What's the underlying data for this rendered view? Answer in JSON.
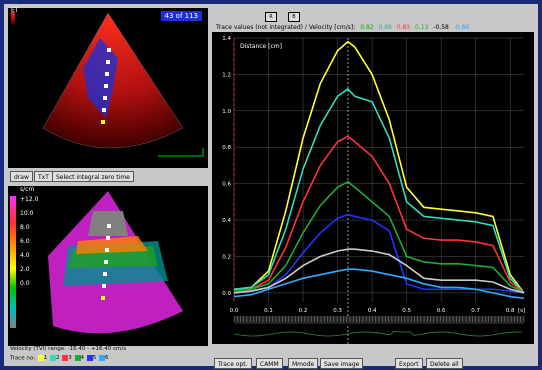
{
  "top_view": {
    "label": "ET",
    "counter": "43 of 113",
    "buttons": [
      "draw",
      "TxT",
      "Select integral zero time"
    ]
  },
  "bottom_view": {
    "label": "s/cm",
    "scale": [
      "+12.0",
      "10.0",
      "8.0",
      "6.0",
      "4.0",
      "2.0",
      "0.0"
    ]
  },
  "velocity_info": "Velocity (TVI) range: -16.40 - +16.40 cm/s",
  "trace_label": "Trace no:",
  "trace_numbers": [
    "1",
    "2",
    "3",
    "4",
    "5",
    "6"
  ],
  "graph": {
    "header_title": "Trace values (not integrated) / Velocity [cm/s]:",
    "header_values": [
      {
        "text": "0.82",
        "color": "#00aa00"
      },
      {
        "text": "0.89",
        "color": "#33cc99"
      },
      {
        "text": "0.83",
        "color": "#ff3333"
      },
      {
        "text": "0.13",
        "color": "#22aa22"
      },
      {
        "text": "-0.58",
        "color": "#000000"
      },
      {
        "text": "-0.66",
        "color": "#3399ff"
      }
    ],
    "top_btns": [
      "R",
      "B"
    ],
    "y_title": "Distance [cm]",
    "x_unit": "[s]",
    "y_ticks": [
      "1.4",
      "1.2",
      "1.0",
      "0.8",
      "0.6",
      "0.4",
      "0.2",
      "0.0"
    ],
    "x_ticks": [
      "0.0",
      "0.1",
      "0.2",
      "0.3",
      "0.4",
      "0.5",
      "0.6",
      "0.7",
      "0.8"
    ],
    "buttons": [
      "Trace opt.",
      "CAMM",
      "Mmode",
      "Save image",
      "Export",
      "Delete all"
    ]
  },
  "chart_data": {
    "type": "line",
    "x": [
      0.0,
      0.05,
      0.1,
      0.15,
      0.2,
      0.25,
      0.3,
      0.33,
      0.35,
      0.4,
      0.45,
      0.5,
      0.55,
      0.6,
      0.65,
      0.7,
      0.75,
      0.8,
      0.84
    ],
    "xlim": [
      0,
      0.84
    ],
    "ylim": [
      -0.05,
      1.4
    ],
    "series": [
      {
        "color": "#ffff33",
        "values": [
          0.02,
          0.03,
          0.12,
          0.45,
          0.85,
          1.15,
          1.33,
          1.38,
          1.35,
          1.2,
          0.95,
          0.58,
          0.47,
          0.46,
          0.45,
          0.44,
          0.42,
          0.1,
          0.0
        ]
      },
      {
        "color": "#33ddbb",
        "values": [
          0.02,
          0.03,
          0.1,
          0.35,
          0.68,
          0.92,
          1.08,
          1.12,
          1.08,
          1.05,
          0.85,
          0.5,
          0.42,
          0.41,
          0.4,
          0.39,
          0.37,
          0.08,
          0.0
        ]
      },
      {
        "color": "#ff3333",
        "values": [
          0.01,
          0.02,
          0.07,
          0.25,
          0.5,
          0.7,
          0.83,
          0.86,
          0.83,
          0.75,
          0.6,
          0.35,
          0.3,
          0.29,
          0.29,
          0.28,
          0.26,
          0.06,
          0.0
        ]
      },
      {
        "color": "#22aa33",
        "values": [
          0.01,
          0.02,
          0.05,
          0.15,
          0.33,
          0.48,
          0.58,
          0.61,
          0.58,
          0.5,
          0.42,
          0.2,
          0.17,
          0.16,
          0.16,
          0.15,
          0.14,
          0.04,
          0.0
        ]
      },
      {
        "color": "#2233ff",
        "values": [
          0.0,
          0.01,
          0.03,
          0.1,
          0.22,
          0.33,
          0.41,
          0.43,
          0.42,
          0.4,
          0.34,
          0.05,
          0.02,
          0.02,
          0.02,
          0.02,
          0.02,
          0.01,
          0.0
        ]
      },
      {
        "color": "#cccccc",
        "values": [
          0.0,
          0.01,
          0.03,
          0.08,
          0.15,
          0.2,
          0.23,
          0.24,
          0.24,
          0.23,
          0.21,
          0.15,
          0.08,
          0.07,
          0.07,
          0.07,
          0.06,
          0.02,
          0.0
        ]
      },
      {
        "color": "#33aaff",
        "values": [
          -0.02,
          -0.01,
          0.02,
          0.05,
          0.08,
          0.1,
          0.12,
          0.13,
          0.13,
          0.12,
          0.1,
          0.08,
          0.05,
          0.03,
          0.03,
          0.02,
          0.0,
          -0.02,
          -0.03
        ]
      }
    ]
  }
}
